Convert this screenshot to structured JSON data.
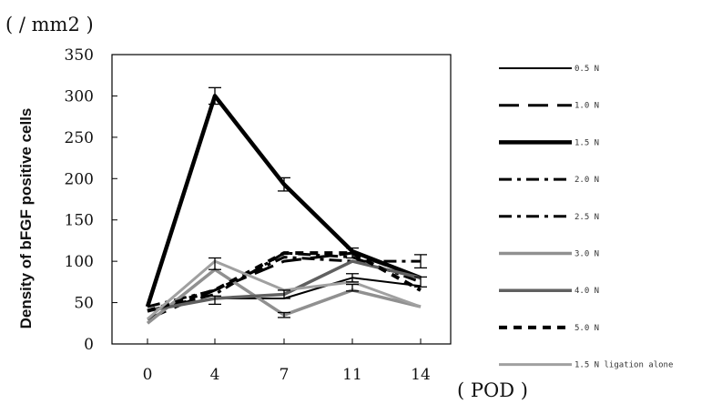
{
  "chart_data": {
    "type": "line",
    "y_unit": "( / mm2 )",
    "ylabel": "Density of bFGF positive cells",
    "x_unit": "( POD )",
    "x_tick_labels": [
      "0",
      "4",
      "7",
      "11",
      "14"
    ],
    "y_tick_labels": [
      "0",
      "50",
      "100",
      "150",
      "200",
      "250",
      "300",
      "350"
    ],
    "ylim": [
      0,
      350
    ],
    "grid": false,
    "legend_position": "right",
    "series": [
      {
        "name": "0.5 N",
        "values": [
          40,
          55,
          55,
          80,
          70
        ],
        "color": "#000000",
        "dash": "solid",
        "width": 2
      },
      {
        "name": "1.0 N",
        "values": [
          30,
          65,
          100,
          110,
          80
        ],
        "color": "#000000",
        "dash": "long",
        "width": 3
      },
      {
        "name": "1.5 N",
        "values": [
          45,
          300,
          193,
          112,
          80
        ],
        "color": "#000000",
        "dash": "solid",
        "width": 4.5
      },
      {
        "name": "2.0 N",
        "values": [
          40,
          60,
          110,
          105,
          75
        ],
        "color": "#000000",
        "dash": "dashdot",
        "width": 3
      },
      {
        "name": "2.5 N",
        "values": [
          45,
          65,
          105,
          100,
          100
        ],
        "color": "#000000",
        "dash": "dashdot",
        "width": 3
      },
      {
        "name": "3.0 N",
        "values": [
          25,
          90,
          35,
          65,
          45
        ],
        "color": "#909090",
        "dash": "solid",
        "width": 3.5
      },
      {
        "name": "4.0 N",
        "values": [
          40,
          55,
          60,
          100,
          80
        ],
        "color": "#606060",
        "dash": "solid",
        "width": 3.5
      },
      {
        "name": "5.0 N",
        "values": [
          40,
          65,
          110,
          110,
          65
        ],
        "color": "#000000",
        "dash": "dotted",
        "width": 4
      },
      {
        "name": "1.5 N ligation alone",
        "values": [
          30,
          100,
          65,
          75,
          45
        ],
        "color": "#a0a0a0",
        "dash": "solid",
        "width": 3
      }
    ],
    "error_bars": [
      {
        "x": "4",
        "value": 300,
        "err": 10
      },
      {
        "x": "7",
        "value": 193,
        "err": 8
      },
      {
        "x": "4",
        "value": 97,
        "err": 7
      },
      {
        "x": "4",
        "value": 53,
        "err": 5
      },
      {
        "x": "7",
        "value": 60,
        "err": 5
      },
      {
        "x": "7",
        "value": 35,
        "err": 3
      },
      {
        "x": "11",
        "value": 110,
        "err": 6
      },
      {
        "x": "11",
        "value": 80,
        "err": 5
      },
      {
        "x": "11",
        "value": 68,
        "err": 4
      },
      {
        "x": "14",
        "value": 100,
        "err": 8
      },
      {
        "x": "14",
        "value": 75,
        "err": 6
      }
    ]
  }
}
